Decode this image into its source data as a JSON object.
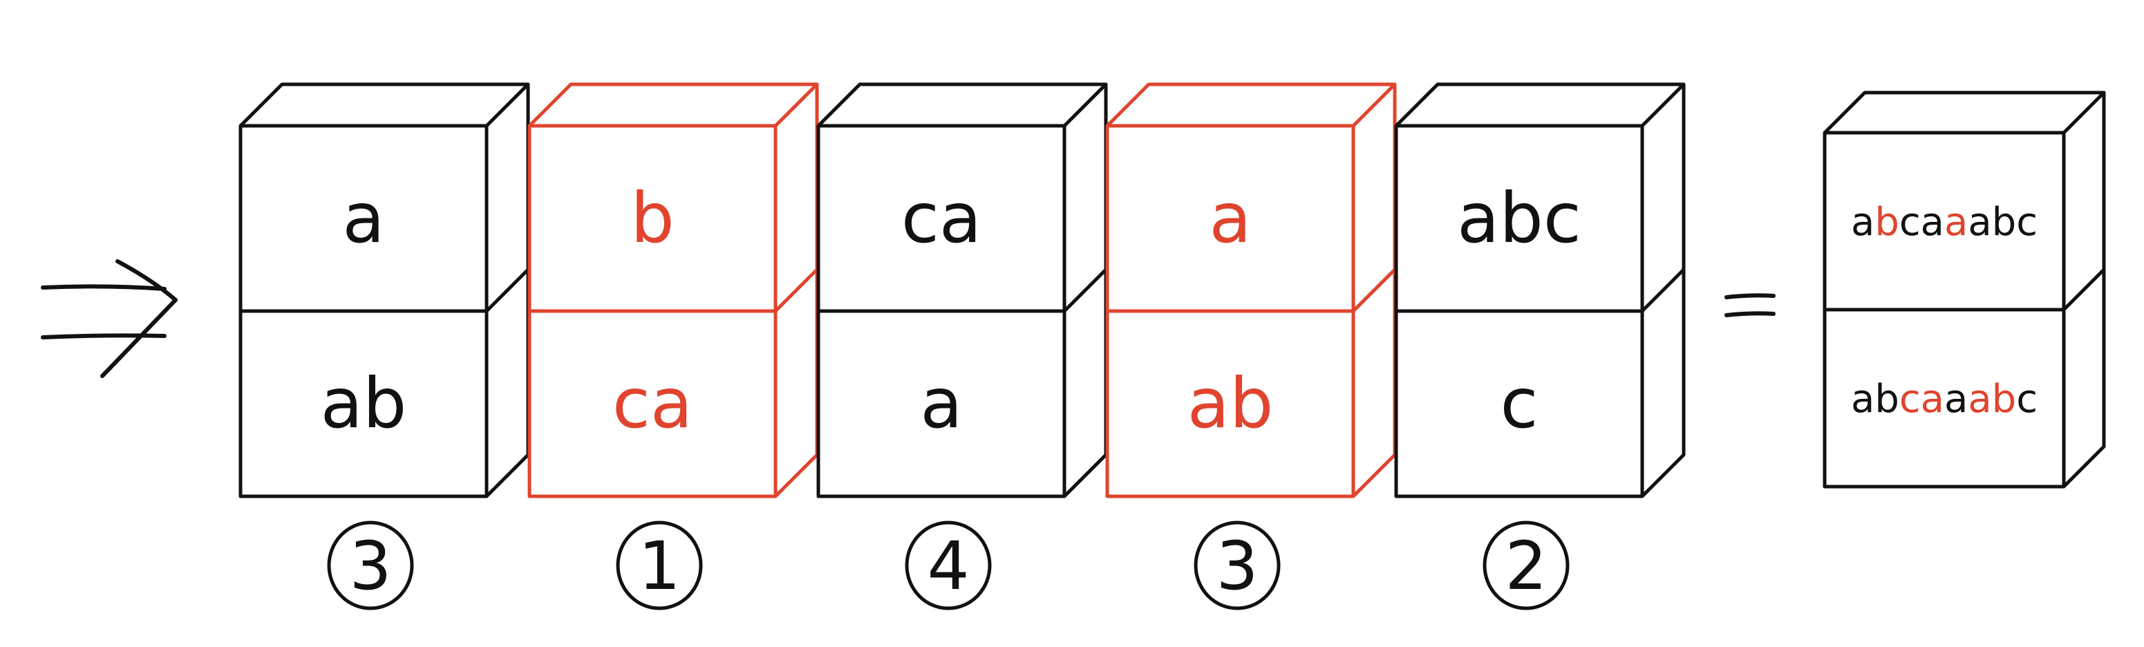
{
  "colors": {
    "ink": "#111111",
    "red": "#e0442e",
    "bg": "#ffffff"
  },
  "arrow_icon": "double-arrow-implies-icon",
  "equals_icon": "equals-sign-icon",
  "dominoes": [
    {
      "top": "a",
      "bottom": "ab",
      "highlight": false,
      "order": "3"
    },
    {
      "top": "b",
      "bottom": "ca",
      "highlight": true,
      "order": "1"
    },
    {
      "top": "ca",
      "bottom": "a",
      "highlight": false,
      "order": "4"
    },
    {
      "top": "a",
      "bottom": "ab",
      "highlight": true,
      "order": "3"
    },
    {
      "top": "abc",
      "bottom": "c",
      "highlight": false,
      "order": "2"
    }
  ],
  "result": {
    "top": [
      {
        "text": "a",
        "red": false
      },
      {
        "text": "b",
        "red": true
      },
      {
        "text": "ca",
        "red": false
      },
      {
        "text": "a",
        "red": true
      },
      {
        "text": "abc",
        "red": false
      }
    ],
    "bottom": [
      {
        "text": "ab",
        "red": false
      },
      {
        "text": "ca",
        "red": true
      },
      {
        "text": "a",
        "red": false
      },
      {
        "text": "ab",
        "red": true
      },
      {
        "text": "c",
        "red": false
      }
    ]
  }
}
